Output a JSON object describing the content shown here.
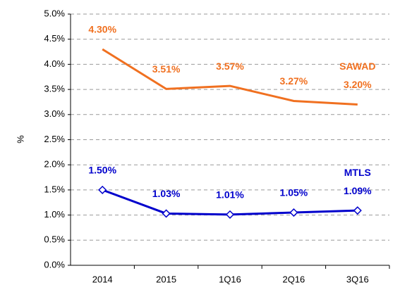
{
  "chart_data": {
    "type": "line",
    "y_label": "%",
    "categories": [
      "2014",
      "2015",
      "1Q16",
      "2Q16",
      "3Q16"
    ],
    "series": [
      {
        "name": "SAWAD",
        "color": "#f07020",
        "marker": "none",
        "values": [
          4.3,
          3.51,
          3.57,
          3.27,
          3.2
        ],
        "value_labels": [
          "4.30%",
          "3.51%",
          "3.57%",
          "3.27%",
          "3.20%"
        ]
      },
      {
        "name": "MTLS",
        "color": "#0000cc",
        "marker": "diamond",
        "values": [
          1.5,
          1.03,
          1.01,
          1.05,
          1.09
        ],
        "value_labels": [
          "1.50%",
          "1.03%",
          "1.01%",
          "1.05%",
          "1.09%"
        ]
      }
    ],
    "ylim": [
      0,
      5
    ],
    "yticks": [
      {
        "value": 0,
        "label": "0.0%"
      },
      {
        "value": 0.5,
        "label": "0.5%"
      },
      {
        "value": 1,
        "label": "1.0%"
      },
      {
        "value": 1.5,
        "label": "1.5%"
      },
      {
        "value": 2,
        "label": "2.0%"
      },
      {
        "value": 2.5,
        "label": "2.5%"
      },
      {
        "value": 3,
        "label": "3.0%"
      },
      {
        "value": 3.5,
        "label": "3.5%"
      },
      {
        "value": 4,
        "label": "4.0%"
      },
      {
        "value": 4.5,
        "label": "4.5%"
      },
      {
        "value": 5,
        "label": "5.0%"
      }
    ],
    "grid": true
  }
}
